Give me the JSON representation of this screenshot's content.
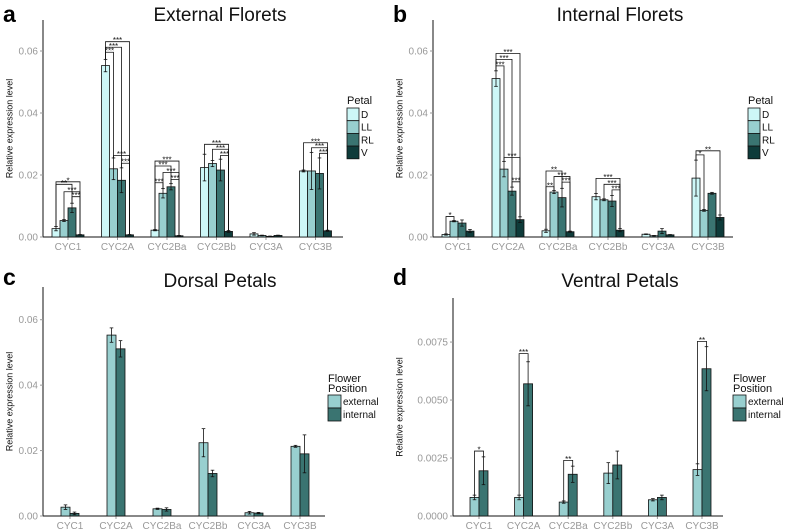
{
  "colors": {
    "D": "#cdf7f7",
    "LL": "#98cfcf",
    "RL": "#3a7471",
    "V": "#0e3b3a",
    "external": "#98cfcf",
    "internal": "#3a7471",
    "axis": "#111111",
    "tick_text": "#999999"
  },
  "chart_data": [
    {
      "panel": "a",
      "type": "bar",
      "title": "External Florets",
      "ylabel": "Relative expression level",
      "xlabel": "",
      "ylim": [
        0,
        0.07
      ],
      "yticks": [
        "0.00",
        "0.02",
        "0.04",
        "0.06"
      ],
      "ytick_values": [
        0,
        0.02,
        0.04,
        0.06
      ],
      "categories": [
        "CYC1",
        "CYC2A",
        "CYC2Ba",
        "CYC2Bb",
        "CYC3A",
        "CYC3B"
      ],
      "legend_title": "Petal",
      "legend_placement": "right",
      "series": [
        {
          "name": "D",
          "values": [
            0.0027,
            0.0553,
            0.0022,
            0.0224,
            0.001,
            0.0213
          ],
          "errors": [
            0.0007,
            0.002,
            0.0002,
            0.0043,
            0.0004,
            0.0003
          ]
        },
        {
          "name": "LL",
          "values": [
            0.0053,
            0.022,
            0.0141,
            0.0237,
            0.0005,
            0.0213
          ],
          "errors": [
            0.0003,
            0.0035,
            0.0015,
            0.001,
            0.0001,
            0.006
          ]
        },
        {
          "name": "RL",
          "values": [
            0.0094,
            0.0183,
            0.0162,
            0.0216,
            0.0002,
            0.0205
          ],
          "errors": [
            0.0015,
            0.004,
            0.001,
            0.0035,
            0.0001,
            0.005
          ]
        },
        {
          "name": "V",
          "values": [
            0.0007,
            0.0007,
            0.0004,
            0.0018,
            0.0005,
            0.002
          ],
          "errors": [
            0.0001,
            0.0001,
            0.0001,
            0.0003,
            0.0001,
            0.0002
          ]
        }
      ],
      "significance": [
        {
          "cat": 0,
          "from": 0,
          "to": 3,
          "y": 0.0178,
          "label": "*"
        },
        {
          "cat": 0,
          "from": 0,
          "to": 2,
          "y": 0.017,
          "label": "**"
        },
        {
          "cat": 0,
          "from": 1,
          "to": 3,
          "y": 0.0146,
          "label": "***"
        },
        {
          "cat": 0,
          "from": 2,
          "to": 3,
          "y": 0.013,
          "label": "***"
        },
        {
          "cat": 1,
          "from": 0,
          "to": 3,
          "y": 0.063,
          "label": "***"
        },
        {
          "cat": 1,
          "from": 0,
          "to": 2,
          "y": 0.0612,
          "label": "***"
        },
        {
          "cat": 1,
          "from": 0,
          "to": 1,
          "y": 0.0596,
          "label": "***"
        },
        {
          "cat": 1,
          "from": 1,
          "to": 3,
          "y": 0.0263,
          "label": "***"
        },
        {
          "cat": 1,
          "from": 2,
          "to": 3,
          "y": 0.0238,
          "label": "***"
        },
        {
          "cat": 2,
          "from": 0,
          "to": 3,
          "y": 0.0245,
          "label": "***"
        },
        {
          "cat": 2,
          "from": 0,
          "to": 2,
          "y": 0.0229,
          "label": "***"
        },
        {
          "cat": 2,
          "from": 1,
          "to": 3,
          "y": 0.0208,
          "label": "***"
        },
        {
          "cat": 2,
          "from": 2,
          "to": 3,
          "y": 0.0186,
          "label": "***"
        },
        {
          "cat": 2,
          "from": 0,
          "to": 1,
          "y": 0.0175,
          "label": "***"
        },
        {
          "cat": 3,
          "from": 0,
          "to": 3,
          "y": 0.0299,
          "label": "***"
        },
        {
          "cat": 3,
          "from": 1,
          "to": 3,
          "y": 0.0283,
          "label": "***"
        },
        {
          "cat": 3,
          "from": 2,
          "to": 3,
          "y": 0.0263,
          "label": "***"
        },
        {
          "cat": 5,
          "from": 0,
          "to": 3,
          "y": 0.0304,
          "label": "***"
        },
        {
          "cat": 5,
          "from": 1,
          "to": 3,
          "y": 0.0288,
          "label": "***"
        },
        {
          "cat": 5,
          "from": 2,
          "to": 3,
          "y": 0.027,
          "label": "***"
        }
      ]
    },
    {
      "panel": "b",
      "type": "bar",
      "title": "Internal Florets",
      "ylabel": "Relative expression level",
      "xlabel": "",
      "ylim": [
        0,
        0.07
      ],
      "yticks": [
        "0.00",
        "0.02",
        "0.04",
        "0.06"
      ],
      "ytick_values": [
        0,
        0.02,
        0.04,
        0.06
      ],
      "categories": [
        "CYC1",
        "CYC2A",
        "CYC2Ba",
        "CYC2Bb",
        "CYC3A",
        "CYC3B"
      ],
      "legend_title": "Petal",
      "legend_placement": "right",
      "series": [
        {
          "name": "D",
          "values": [
            0.0008,
            0.0511,
            0.002,
            0.013,
            0.0009,
            0.019
          ],
          "errors": [
            0.0002,
            0.0025,
            0.0005,
            0.001,
            0.0001,
            0.0058
          ]
        },
        {
          "name": "LL",
          "values": [
            0.0051,
            0.0219,
            0.0145,
            0.012,
            0.0004,
            0.0086
          ],
          "errors": [
            0.0002,
            0.0025,
            0.0005,
            0.0003,
            0.0001,
            0.0003
          ]
        },
        {
          "name": "RL",
          "values": [
            0.0045,
            0.0148,
            0.0127,
            0.0116,
            0.0019,
            0.0141
          ],
          "errors": [
            0.001,
            0.0013,
            0.003,
            0.0018,
            0.0008,
            0.0003
          ]
        },
        {
          "name": "V",
          "values": [
            0.0019,
            0.0056,
            0.0017,
            0.0022,
            0.0007,
            0.0063
          ],
          "errors": [
            0.0005,
            0.0009,
            0.0002,
            0.0005,
            0.0001,
            0.0008
          ]
        }
      ],
      "significance": [
        {
          "cat": 0,
          "from": 0,
          "to": 1,
          "y": 0.0066,
          "label": "*"
        },
        {
          "cat": 1,
          "from": 0,
          "to": 3,
          "y": 0.0592,
          "label": "***"
        },
        {
          "cat": 1,
          "from": 0,
          "to": 2,
          "y": 0.0573,
          "label": "***"
        },
        {
          "cat": 1,
          "from": 0,
          "to": 1,
          "y": 0.0552,
          "label": "***"
        },
        {
          "cat": 1,
          "from": 1,
          "to": 3,
          "y": 0.0256,
          "label": "***"
        },
        {
          "cat": 1,
          "from": 2,
          "to": 3,
          "y": 0.0178,
          "label": "***"
        },
        {
          "cat": 2,
          "from": 0,
          "to": 2,
          "y": 0.0213,
          "label": "**"
        },
        {
          "cat": 2,
          "from": 1,
          "to": 3,
          "y": 0.0195,
          "label": "***"
        },
        {
          "cat": 2,
          "from": 2,
          "to": 3,
          "y": 0.0177,
          "label": "***"
        },
        {
          "cat": 2,
          "from": 0,
          "to": 1,
          "y": 0.0162,
          "label": "**"
        },
        {
          "cat": 3,
          "from": 0,
          "to": 3,
          "y": 0.0189,
          "label": "***"
        },
        {
          "cat": 3,
          "from": 1,
          "to": 3,
          "y": 0.017,
          "label": "***"
        },
        {
          "cat": 3,
          "from": 2,
          "to": 3,
          "y": 0.0152,
          "label": "***"
        },
        {
          "cat": 5,
          "from": 0,
          "to": 3,
          "y": 0.0278,
          "label": "**"
        },
        {
          "cat": 5,
          "from": 0,
          "to": 1,
          "y": 0.0265,
          "label": "*"
        }
      ]
    },
    {
      "panel": "c",
      "type": "bar",
      "title": "Dorsal Petals",
      "ylabel": "Relative expression level",
      "xlabel": "",
      "ylim": [
        0,
        0.07
      ],
      "yticks": [
        "0.00",
        "0.02",
        "0.04",
        "0.06"
      ],
      "ytick_values": [
        0,
        0.02,
        0.04,
        0.06
      ],
      "categories": [
        "CYC1",
        "CYC2A",
        "CYC2Ba",
        "CYC2Bb",
        "CYC3A",
        "CYC3B"
      ],
      "legend_title": [
        "Flower",
        "Position"
      ],
      "legend_placement": "right",
      "series": [
        {
          "name": "external",
          "values": [
            0.0027,
            0.0553,
            0.0022,
            0.0224,
            0.001,
            0.0213
          ],
          "errors": [
            0.0007,
            0.0022,
            0.0002,
            0.0043,
            0.0004,
            0.0003
          ]
        },
        {
          "name": "internal",
          "values": [
            0.0008,
            0.0511,
            0.002,
            0.013,
            0.0009,
            0.019
          ],
          "errors": [
            0.0004,
            0.0025,
            0.0005,
            0.001,
            0.0002,
            0.0058
          ]
        }
      ],
      "significance": []
    },
    {
      "panel": "d",
      "type": "bar",
      "title": "Ventral Petals",
      "ylabel": "Relative expression level",
      "xlabel": "",
      "ylim": [
        0,
        0.0094
      ],
      "yticks": [
        "0.0000",
        "0.0025",
        "0.0050",
        "0.0075"
      ],
      "ytick_values": [
        0,
        0.0025,
        0.005,
        0.0075
      ],
      "categories": [
        "CYC1",
        "CYC2A",
        "CYC2Ba",
        "CYC2Bb",
        "CYC3A",
        "CYC3B"
      ],
      "legend_title": [
        "Flower",
        "Position"
      ],
      "legend_placement": "right",
      "series": [
        {
          "name": "external",
          "values": [
            0.0008,
            0.0008,
            0.0006,
            0.00185,
            0.0007,
            0.002
          ],
          "errors": [
            0.0001,
            0.0001,
            5e-05,
            0.00045,
            5e-05,
            0.00025
          ]
        },
        {
          "name": "internal",
          "values": [
            0.00195,
            0.0057,
            0.0018,
            0.0022,
            0.0008,
            0.00635
          ],
          "errors": [
            0.0006,
            0.00095,
            0.00035,
            0.0006,
            0.0001,
            0.00095
          ]
        }
      ],
      "significance": [
        {
          "cat": 0,
          "from": 0,
          "to": 1,
          "y": 0.0028,
          "label": "*"
        },
        {
          "cat": 1,
          "from": 0,
          "to": 1,
          "y": 0.007,
          "label": "***"
        },
        {
          "cat": 2,
          "from": 0,
          "to": 1,
          "y": 0.0024,
          "label": "**"
        },
        {
          "cat": 5,
          "from": 0,
          "to": 1,
          "y": 0.00753,
          "label": "**"
        }
      ]
    }
  ]
}
